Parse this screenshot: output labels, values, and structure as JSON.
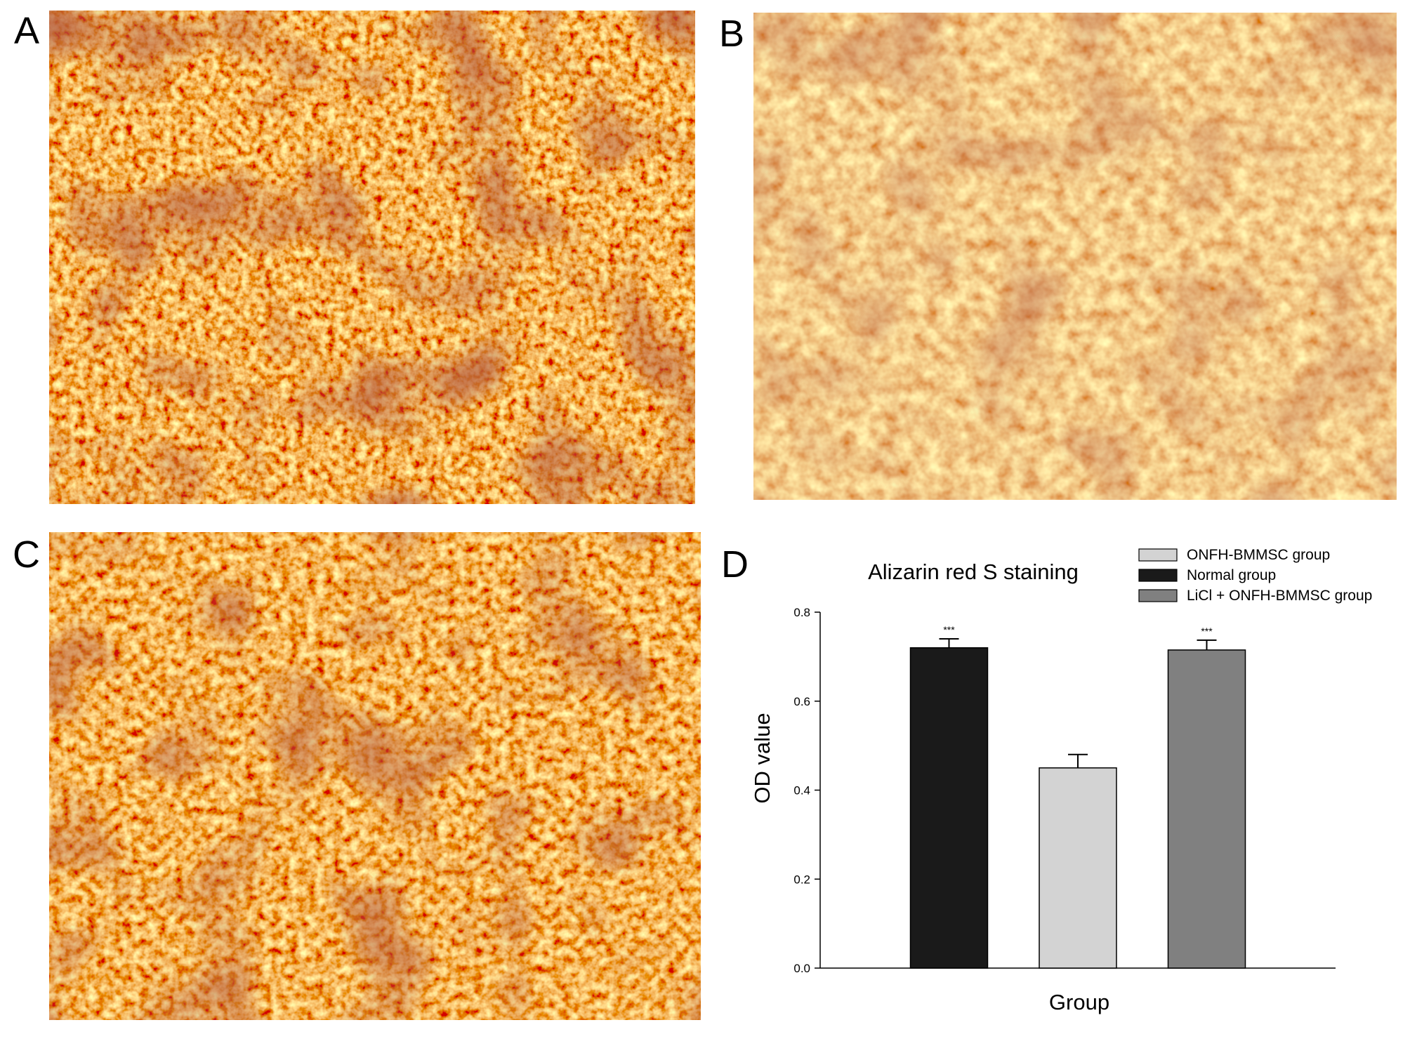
{
  "panel_labels": [
    "A",
    "B",
    "C",
    "D"
  ],
  "chart_data": {
    "type": "bar",
    "title": "Alizarin red S staining",
    "xlabel": "Group",
    "ylabel": "OD value",
    "categories": [
      null,
      null,
      null
    ],
    "series": [
      {
        "name": "ONFH-BMMSC group",
        "color": "#d3d3d3",
        "values": [
          null,
          0.45,
          null
        ],
        "errors": [
          null,
          0.03,
          null
        ],
        "annotations": [
          null,
          null,
          null
        ]
      },
      {
        "name": "Normal group",
        "color": "#1a1a1a",
        "values": [
          0.72,
          null,
          null
        ],
        "errors": [
          0.02,
          null,
          null
        ],
        "annotations": [
          "***",
          null,
          null
        ]
      },
      {
        "name": "LiCl + ONFH-BMMSC group",
        "color": "#808080",
        "values": [
          null,
          null,
          0.715
        ],
        "errors": [
          null,
          null,
          0.022
        ],
        "annotations": [
          null,
          null,
          "***"
        ]
      }
    ],
    "ylim": [
      0,
      0.8
    ],
    "yticks": [
      {
        "value": 0,
        "label": "0.0"
      },
      0.2,
      0.4,
      0.6,
      0.8
    ],
    "legend": "upper right"
  }
}
